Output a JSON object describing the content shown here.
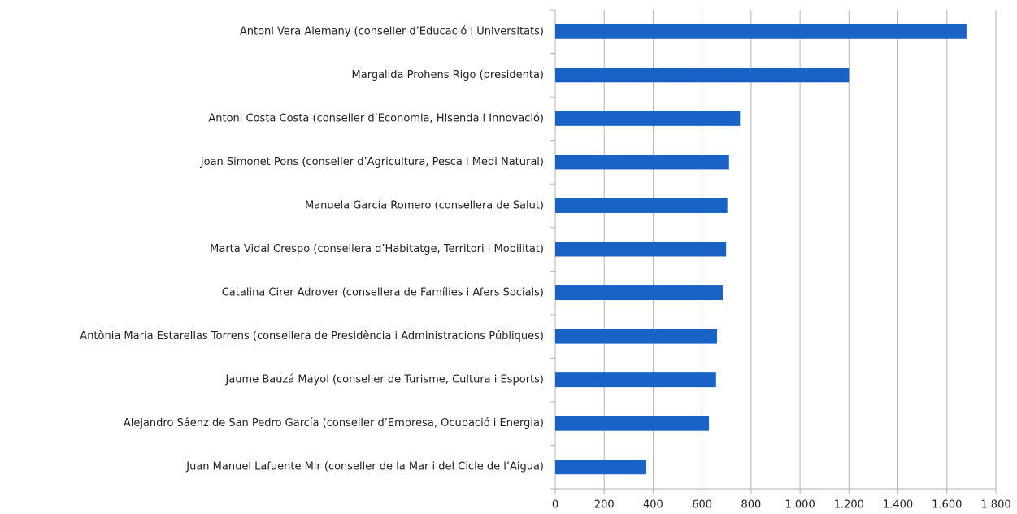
{
  "chart_data": {
    "type": "barh",
    "categories": [
      "Antoni Vera Alemany (conseller d’Educació i Universitats)",
      "Margalida Prohens Rigo (presidenta)",
      "Antoni Costa Costa (conseller d’Economia, Hisenda i Innovació)",
      "Joan Simonet Pons (conseller d’Agricultura, Pesca i Medi Natural)",
      "Manuela García Romero (consellera de Salut)",
      "Marta Vidal Crespo (consellera d’Habitatge, Territori i Mobilitat)",
      "Catalina Cirer Adrover (consellera de Famílies i Afers Socials)",
      "Antònia Maria Estarellas Torrens (consellera de Presidència i Administracions Públiques)",
      "Jaume Bauzá Mayol (conseller de Turisme, Cultura i Esports)",
      "Alejandro Sáenz de San Pedro García (conseller d’Empresa, Ocupació i Energia)",
      "Juan Manuel Lafuente Mir (conseller de la Mar i del Cicle de l’Aigua)"
    ],
    "values": [
      1680,
      1200,
      755,
      710,
      703,
      698,
      684,
      661,
      657,
      628,
      372
    ],
    "color": "#1a63c6",
    "xlim": [
      0,
      1800
    ],
    "xticks": [
      0,
      200,
      400,
      600,
      800,
      {
        "value": 1000,
        "label": "1.000"
      },
      {
        "value": 1200,
        "label": "1.200"
      },
      {
        "value": 1400,
        "label": "1.400"
      },
      {
        "value": 1600,
        "label": "1.600"
      },
      {
        "value": 1800,
        "label": "1.800"
      }
    ],
    "grid": true
  }
}
